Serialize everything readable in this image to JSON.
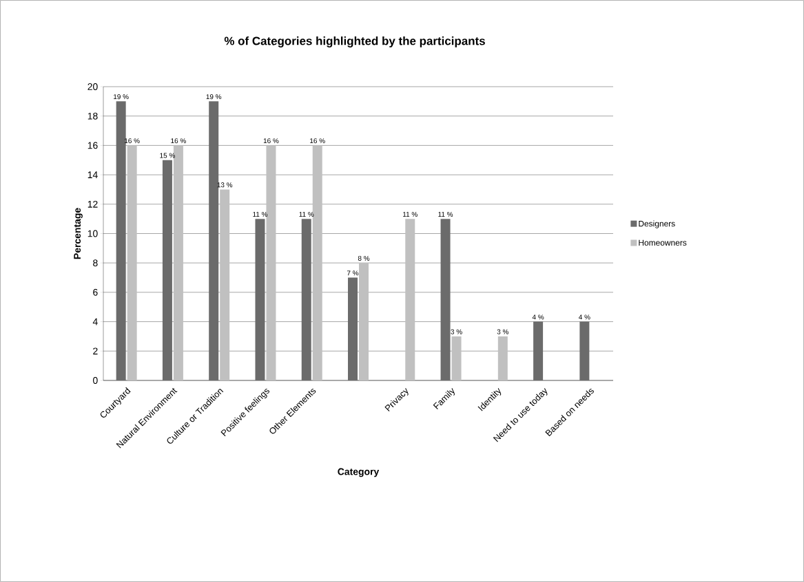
{
  "chart_data": {
    "type": "bar",
    "title": "% of Categories highlighted by the participants",
    "xlabel": "Category",
    "ylabel": "Percentage",
    "categories": [
      "Courtyard",
      "Natural  Environment",
      "Culture or Tradition",
      "Positive feelings",
      "Other Elements",
      null,
      "Privacy",
      "Family",
      "Identity",
      "Need to use today",
      "Based on needs"
    ],
    "series": [
      {
        "name": "Designers",
        "color": "#6b6b6b",
        "values": [
          19,
          15,
          19,
          11,
          11,
          7,
          0,
          11,
          0,
          4,
          4
        ],
        "value_labels": [
          "19 %",
          "15 %",
          "19 %",
          "11 %",
          "11 %",
          "7 %",
          null,
          "11 %",
          null,
          "4 %",
          "4 %"
        ]
      },
      {
        "name": "Homeowners",
        "color": "#c0c0c0",
        "values": [
          16,
          16,
          13,
          16,
          16,
          8,
          11,
          3,
          3,
          0,
          0
        ],
        "value_labels": [
          "16 %",
          "16 %",
          "13 %",
          "16 %",
          "16 %",
          "8 %",
          "11 %",
          "3 %",
          "3 %",
          null,
          null
        ]
      }
    ],
    "ylim": [
      0,
      20
    ],
    "yticks": [
      0,
      2,
      4,
      6,
      8,
      10,
      12,
      14,
      16,
      18,
      20
    ],
    "grid": "y",
    "legend": "right"
  }
}
